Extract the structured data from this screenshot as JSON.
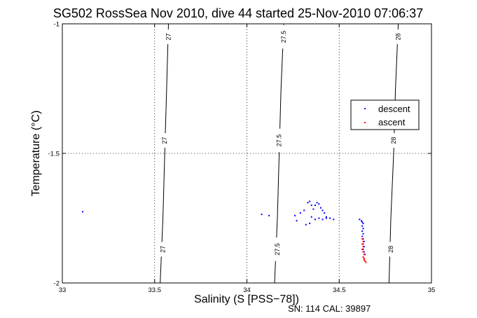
{
  "chart_data": {
    "type": "scatter",
    "title": "SG502 RossSea Nov 2010, dive 44 started 25-Nov-2010 07:06:37",
    "xlabel": "Salinity (S [PSS−78])",
    "ylabel": "Temperature (°C)",
    "xlim": [
      33,
      35
    ],
    "ylim": [
      -2,
      -1
    ],
    "x_ticks": [
      33,
      33.5,
      34,
      34.5,
      35
    ],
    "x_tick_labels": [
      "33",
      "33.5",
      "34",
      "34.5",
      "35"
    ],
    "y_ticks": [
      -2,
      -1.5,
      -1
    ],
    "y_tick_labels": [
      "-2",
      "-1.5",
      "-1"
    ],
    "grid": "dotted at major ticks",
    "legend_position": "right",
    "colors": {
      "descent": "#0000ff",
      "ascent": "#ff0000",
      "contour": "#000000",
      "grid": "#000000"
    },
    "contours": [
      {
        "label": "27",
        "points": [
          [
            33.53,
            -2
          ],
          [
            33.545,
            -1.75
          ],
          [
            33.555,
            -1.5
          ],
          [
            33.565,
            -1.25
          ],
          [
            33.575,
            -1
          ]
        ],
        "label_positions": [
          [
            33.545,
            -1.87
          ],
          [
            33.555,
            -1.45
          ],
          [
            33.575,
            -1.05
          ]
        ]
      },
      {
        "label": "27.5",
        "points": [
          [
            34.15,
            -2
          ],
          [
            34.165,
            -1.75
          ],
          [
            34.175,
            -1.5
          ],
          [
            34.185,
            -1.25
          ],
          [
            34.2,
            -1
          ]
        ],
        "label_positions": [
          [
            34.165,
            -1.87
          ],
          [
            34.175,
            -1.45
          ],
          [
            34.2,
            -1.05
          ]
        ]
      },
      {
        "label": "28",
        "points": [
          [
            34.77,
            -2
          ],
          [
            34.78,
            -1.75
          ],
          [
            34.795,
            -1.5
          ],
          [
            34.805,
            -1.25
          ],
          [
            34.82,
            -1
          ]
        ],
        "label_positions": [
          [
            34.78,
            -1.87
          ],
          [
            34.795,
            -1.45
          ],
          [
            34.82,
            -1.05
          ]
        ]
      }
    ],
    "series": [
      {
        "name": "descent",
        "marker": "dot",
        "color": "#0000ff",
        "points": [
          [
            33.11,
            -1.725
          ],
          [
            34.08,
            -1.735
          ],
          [
            34.12,
            -1.74
          ],
          [
            34.26,
            -1.74
          ],
          [
            34.27,
            -1.76
          ],
          [
            34.29,
            -1.73
          ],
          [
            34.31,
            -1.72
          ],
          [
            34.33,
            -1.69
          ],
          [
            34.34,
            -1.685
          ],
          [
            34.35,
            -1.7
          ],
          [
            34.36,
            -1.715
          ],
          [
            34.37,
            -1.7
          ],
          [
            34.38,
            -1.69
          ],
          [
            34.39,
            -1.695
          ],
          [
            34.4,
            -1.71
          ],
          [
            34.41,
            -1.72
          ],
          [
            34.42,
            -1.73
          ],
          [
            34.43,
            -1.745
          ],
          [
            34.35,
            -1.745
          ],
          [
            34.37,
            -1.755
          ],
          [
            34.39,
            -1.75
          ],
          [
            34.41,
            -1.755
          ],
          [
            34.43,
            -1.75
          ],
          [
            34.45,
            -1.75
          ],
          [
            34.47,
            -1.755
          ],
          [
            34.34,
            -1.77
          ],
          [
            34.32,
            -1.775
          ],
          [
            34.61,
            -1.755
          ],
          [
            34.62,
            -1.76
          ],
          [
            34.625,
            -1.765
          ],
          [
            34.63,
            -1.77
          ],
          [
            34.625,
            -1.78
          ],
          [
            34.63,
            -1.79
          ],
          [
            34.625,
            -1.8
          ],
          [
            34.63,
            -1.81
          ],
          [
            34.625,
            -1.82
          ],
          [
            34.63,
            -1.83
          ],
          [
            34.635,
            -1.84
          ],
          [
            34.63,
            -1.85
          ],
          [
            34.635,
            -1.86
          ],
          [
            34.63,
            -1.87
          ],
          [
            34.635,
            -1.88
          ],
          [
            34.64,
            -1.89
          ]
        ]
      },
      {
        "name": "ascent",
        "marker": "dot",
        "color": "#ff0000",
        "points": [
          [
            34.625,
            -1.83
          ],
          [
            34.63,
            -1.84
          ],
          [
            34.625,
            -1.85
          ],
          [
            34.63,
            -1.86
          ],
          [
            34.625,
            -1.87
          ],
          [
            34.63,
            -1.88
          ],
          [
            34.635,
            -1.89
          ],
          [
            34.63,
            -1.9
          ],
          [
            34.635,
            -1.91
          ],
          [
            34.64,
            -1.915
          ],
          [
            34.645,
            -1.92
          ],
          [
            34.635,
            -1.905
          ]
        ]
      }
    ]
  },
  "footer": {
    "text": "SN: 114  CAL: 39897"
  }
}
